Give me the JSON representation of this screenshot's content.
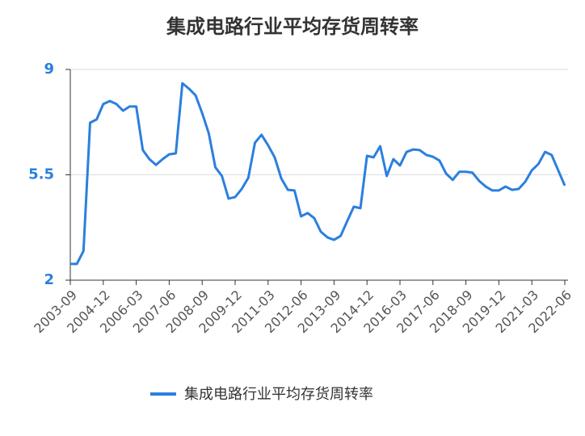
{
  "chart_data": {
    "type": "line",
    "title": "集成电路行业平均存货周转率",
    "categories": [
      "2003-09",
      null,
      null,
      null,
      null,
      "2004-12",
      null,
      null,
      null,
      null,
      "2006-03",
      null,
      null,
      null,
      null,
      "2007-06",
      null,
      null,
      null,
      null,
      "2008-09",
      null,
      null,
      null,
      null,
      "2009-12",
      null,
      null,
      null,
      null,
      "2011-03",
      null,
      null,
      null,
      null,
      "2012-06",
      null,
      null,
      null,
      null,
      "2013-09",
      null,
      null,
      null,
      null,
      "2014-12",
      null,
      null,
      null,
      null,
      "2016-03",
      null,
      null,
      null,
      null,
      "2017-06",
      null,
      null,
      null,
      null,
      "2018-09",
      null,
      null,
      null,
      null,
      "2019-12",
      null,
      null,
      null,
      null,
      "2021-03",
      null,
      null,
      null,
      null,
      "2022-06"
    ],
    "series": [
      {
        "name": "集成电路行业平均存货周转率",
        "color": "#2b7fdf",
        "values": [
          2.54,
          2.54,
          2.97,
          7.23,
          7.34,
          7.85,
          7.95,
          7.85,
          7.63,
          7.77,
          7.77,
          6.32,
          6.02,
          5.83,
          6.02,
          6.18,
          6.21,
          8.54,
          8.36,
          8.14,
          7.55,
          6.88,
          5.75,
          5.46,
          4.71,
          4.76,
          5.03,
          5.4,
          6.56,
          6.83,
          6.48,
          6.08,
          5.38,
          5.0,
          4.98,
          4.12,
          4.23,
          4.06,
          3.61,
          3.42,
          3.34,
          3.47,
          3.96,
          4.44,
          4.39,
          6.13,
          6.08,
          6.45,
          5.46,
          6.02,
          5.81,
          6.26,
          6.34,
          6.32,
          6.16,
          6.1,
          5.97,
          5.54,
          5.33,
          5.6,
          5.6,
          5.57,
          5.3,
          5.11,
          4.98,
          4.98,
          5.11,
          5.0,
          5.03,
          5.27,
          5.65,
          5.86,
          6.26,
          6.16,
          5.65,
          5.14
        ]
      }
    ],
    "ylim": [
      2,
      9
    ],
    "yticks": [
      2,
      5.5,
      9
    ],
    "grid": true
  }
}
